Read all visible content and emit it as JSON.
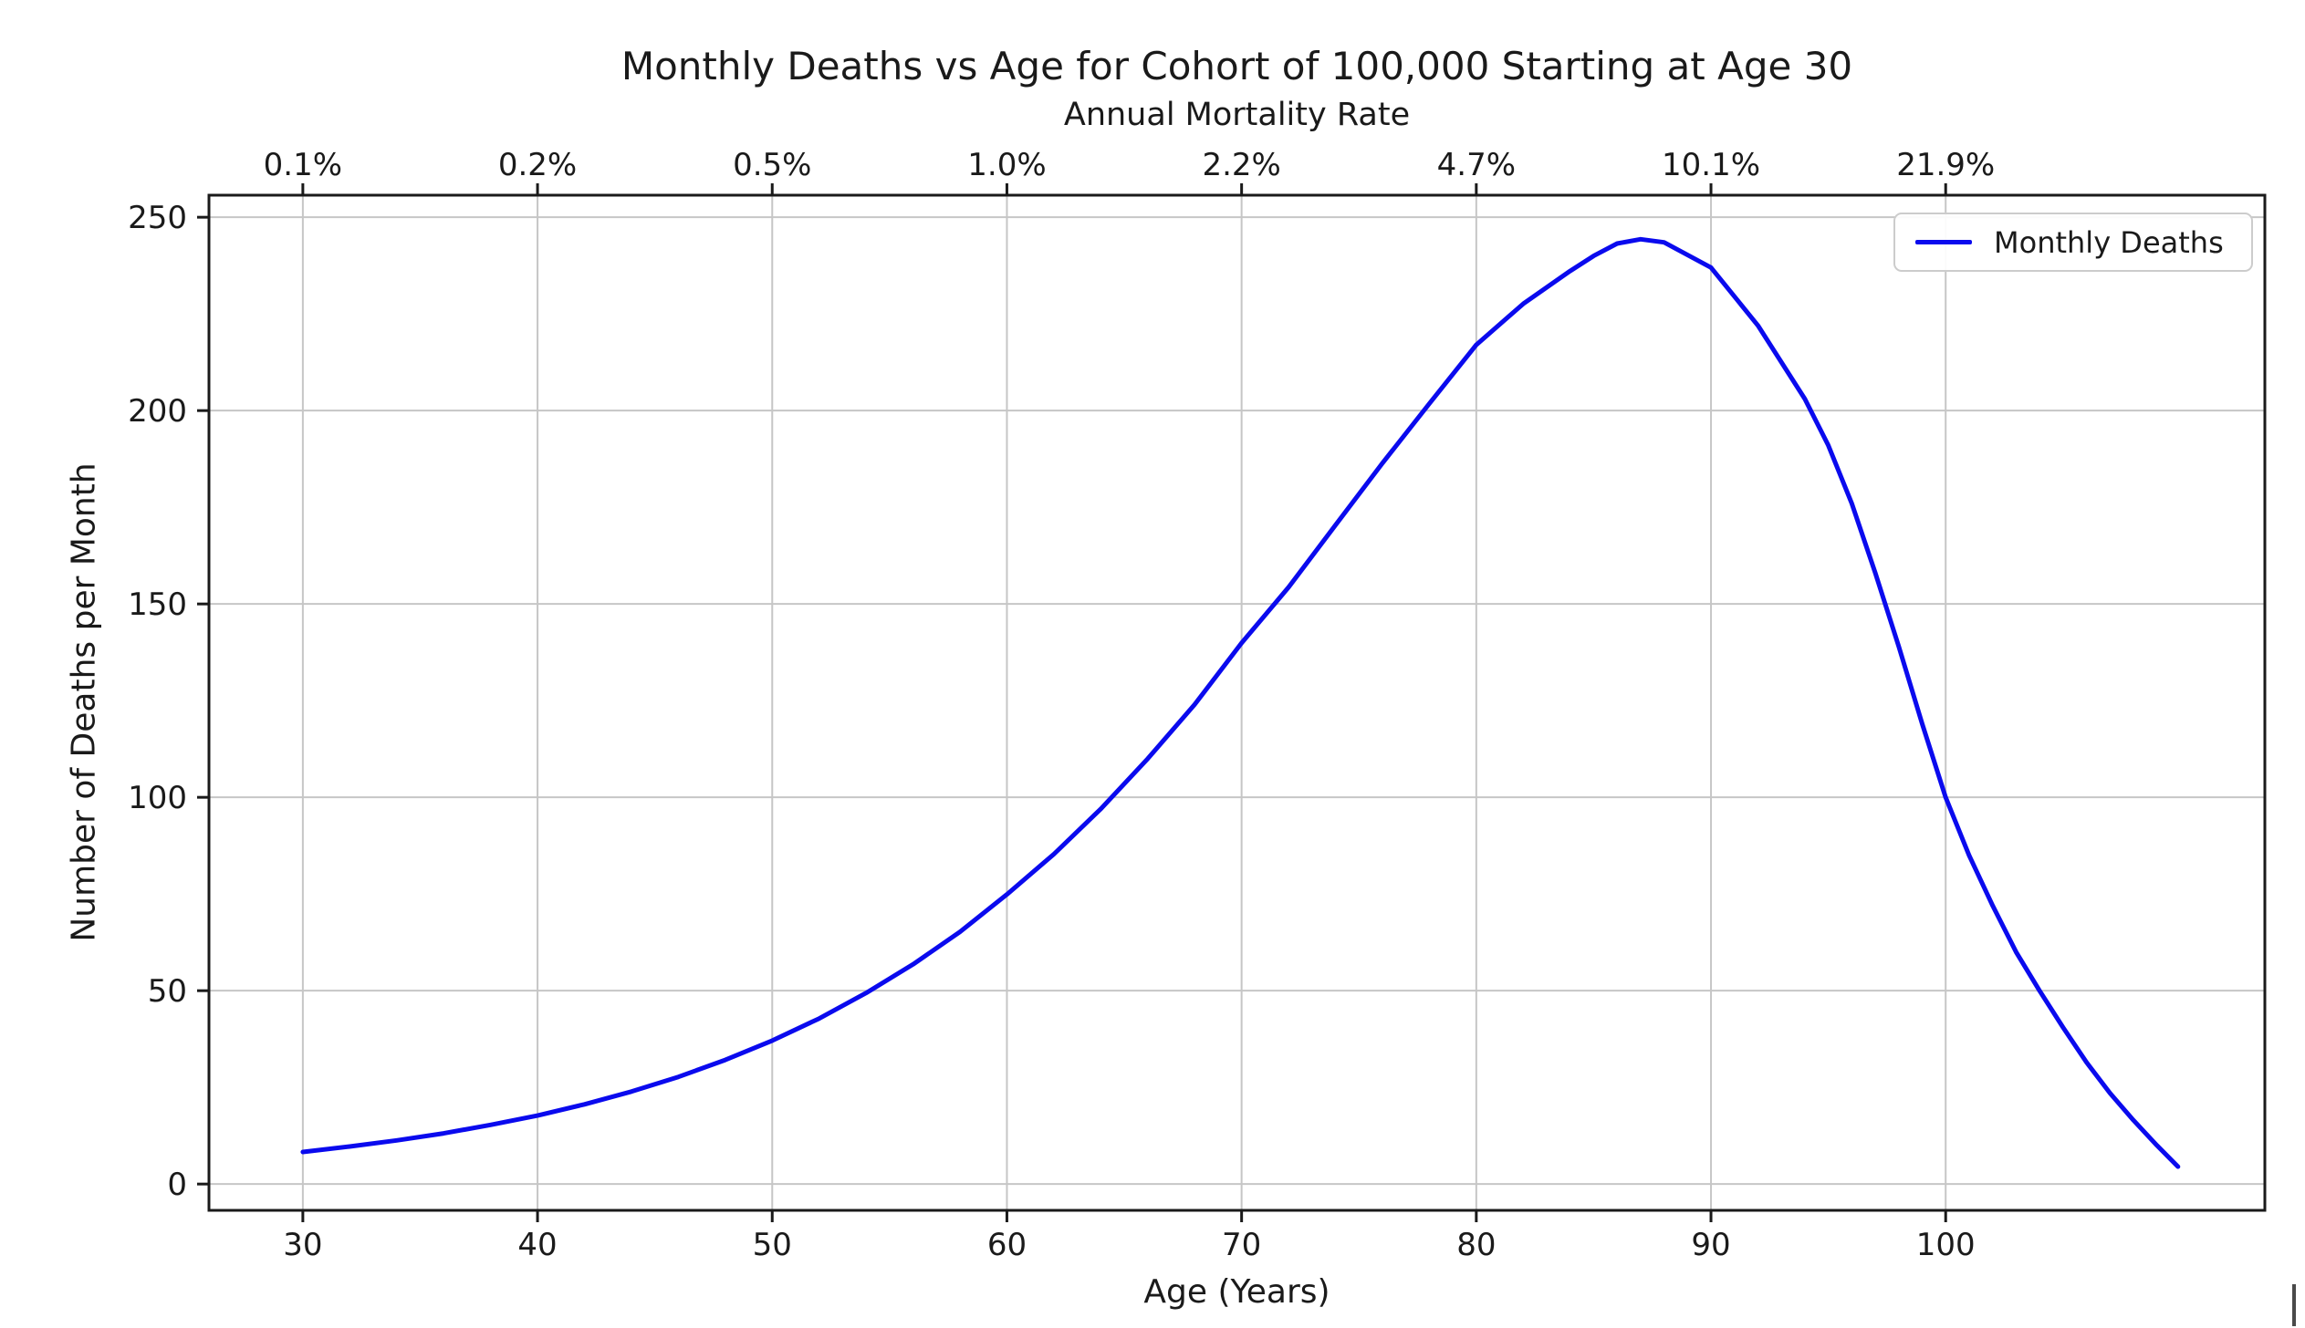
{
  "figure": {
    "background": "#ffffff",
    "text_color": "#1a1a1a"
  },
  "chart_data": {
    "type": "line",
    "title": "Monthly Deaths vs Age for Cohort of 100,000 Starting at Age 30",
    "xlabel": "Age (Years)",
    "ylabel": "Number of Deaths per Month",
    "top_axis_label": "Annual Mortality Rate",
    "grid": true,
    "legend_position": "upper right",
    "xlim": [
      26.0,
      113.6
    ],
    "ylim": [
      -6.8,
      255.7
    ],
    "x_ticks": [
      30,
      40,
      50,
      60,
      70,
      80,
      90,
      100
    ],
    "y_ticks": [
      0,
      50,
      100,
      150,
      200,
      250
    ],
    "top_axis_ticks": [
      "0.1%",
      "0.2%",
      "0.5%",
      "1.0%",
      "2.2%",
      "4.7%",
      "10.1%",
      "21.9%"
    ],
    "top_axis_tick_positions": [
      30,
      40,
      50,
      60,
      70,
      80,
      90,
      100
    ],
    "colors": {
      "line": "#0a0aee",
      "grid": "#c6c6c6",
      "spine": "#1a1a1a"
    },
    "series": [
      {
        "name": "Monthly Deaths",
        "color": "#0a0aee",
        "points": [
          [
            30,
            8.3
          ],
          [
            32,
            9.7
          ],
          [
            34,
            11.3
          ],
          [
            36,
            13.1
          ],
          [
            38,
            15.3
          ],
          [
            40,
            17.7
          ],
          [
            42,
            20.6
          ],
          [
            44,
            23.9
          ],
          [
            46,
            27.7
          ],
          [
            48,
            32.1
          ],
          [
            50,
            37.1
          ],
          [
            52,
            42.8
          ],
          [
            54,
            49.4
          ],
          [
            56,
            56.8
          ],
          [
            58,
            65.2
          ],
          [
            60,
            74.9
          ],
          [
            62,
            85.3
          ],
          [
            64,
            97.0
          ],
          [
            66,
            110.0
          ],
          [
            68,
            124.0
          ],
          [
            70,
            139.9
          ],
          [
            72,
            154.3
          ],
          [
            74,
            170.4
          ],
          [
            76,
            186.4
          ],
          [
            78,
            201.8
          ],
          [
            80,
            217.0
          ],
          [
            82,
            227.6
          ],
          [
            84,
            236.1
          ],
          [
            85,
            240.0
          ],
          [
            86,
            243.2
          ],
          [
            87,
            244.3
          ],
          [
            88,
            243.5
          ],
          [
            90,
            237.0
          ],
          [
            92,
            222.0
          ],
          [
            94,
            203.0
          ],
          [
            95,
            191.0
          ],
          [
            96,
            176.0
          ],
          [
            97,
            158.0
          ],
          [
            98,
            139.0
          ],
          [
            99,
            119.0
          ],
          [
            100,
            100.0
          ],
          [
            101,
            85.0
          ],
          [
            102,
            72.0
          ],
          [
            103,
            60.0
          ],
          [
            104,
            50.0
          ],
          [
            105,
            40.5
          ],
          [
            106,
            31.5
          ],
          [
            107,
            23.5
          ],
          [
            108,
            16.5
          ],
          [
            109,
            10.0
          ],
          [
            109.9,
            4.5
          ]
        ]
      }
    ]
  },
  "legend": {
    "label": "Monthly Deaths"
  }
}
